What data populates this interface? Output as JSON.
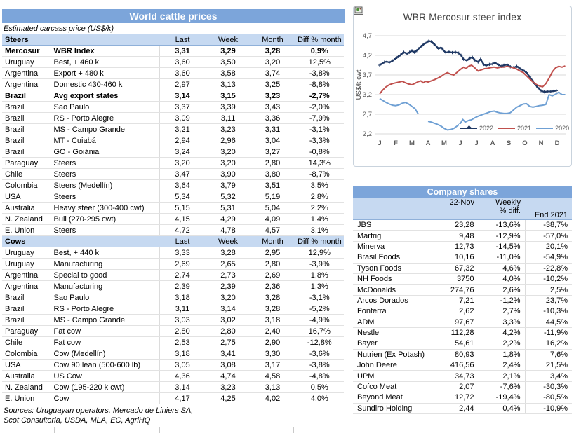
{
  "colors": {
    "header_blue": "#7CA5DA",
    "light_blue": "#C6D9F1",
    "series_2022": "#1F3864",
    "series_2021": "#C0504D",
    "series_2020": "#6FA0D4",
    "grid_gray": "#D9D9D9"
  },
  "left_table": {
    "title": "World cattle prices",
    "subtitle": "Estimated carcass price (US$/k)",
    "columns": [
      "Last",
      "Week",
      "Month",
      "Diff % month"
    ],
    "sections": [
      {
        "name": "Steers",
        "rows": [
          {
            "country": "Mercosur",
            "desc": "WBR Index",
            "last": "3,31",
            "week": "3,29",
            "month": "3,28",
            "diff": "0,9%",
            "bold": true
          },
          {
            "country": "Uruguay",
            "desc": "Best, + 460 k",
            "last": "3,60",
            "week": "3,50",
            "month": "3,20",
            "diff": "12,5%"
          },
          {
            "country": "Argentina",
            "desc": "Export + 480 k",
            "last": "3,60",
            "week": "3,58",
            "month": "3,74",
            "diff": "-3,8%"
          },
          {
            "country": "Argentina",
            "desc": "Domestic 430-460 k",
            "last": "2,97",
            "week": "3,13",
            "month": "3,25",
            "diff": "-8,8%"
          },
          {
            "country": "Brazil",
            "desc": "Avg export states",
            "last": "3,14",
            "week": "3,15",
            "month": "3,23",
            "diff": "-2,7%",
            "bold": true
          },
          {
            "country": "Brazil",
            "desc": "Sao Paulo",
            "last": "3,37",
            "week": "3,39",
            "month": "3,43",
            "diff": "-2,0%"
          },
          {
            "country": "Brazil",
            "desc": "RS - Porto Alegre",
            "last": "3,09",
            "week": "3,11",
            "month": "3,36",
            "diff": "-7,9%"
          },
          {
            "country": "Brazil",
            "desc": "MS - Campo Grande",
            "last": "3,21",
            "week": "3,23",
            "month": "3,31",
            "diff": "-3,1%"
          },
          {
            "country": "Brazil",
            "desc": "MT - Cuiabá",
            "last": "2,94",
            "week": "2,96",
            "month": "3,04",
            "diff": "-3,3%"
          },
          {
            "country": "Brazil",
            "desc": "GO - Goiánia",
            "last": "3,24",
            "week": "3,20",
            "month": "3,27",
            "diff": "-0,8%"
          },
          {
            "country": "Paraguay",
            "desc": "Steers",
            "last": "3,20",
            "week": "3,20",
            "month": "2,80",
            "diff": "14,3%"
          },
          {
            "country": "Chile",
            "desc": "Steers",
            "last": "3,47",
            "week": "3,90",
            "month": "3,80",
            "diff": "-8,7%"
          },
          {
            "country": "Colombia",
            "desc": "Steers (Medellín)",
            "last": "3,64",
            "week": "3,79",
            "month": "3,51",
            "diff": "3,5%"
          },
          {
            "country": "USA",
            "desc": "Steers",
            "last": "5,34",
            "week": "5,32",
            "month": "5,19",
            "diff": "2,8%"
          },
          {
            "country": "Australia",
            "desc": "Heavy steer (300-400 cwt)",
            "last": "5,15",
            "week": "5,31",
            "month": "5,04",
            "diff": "2,2%"
          },
          {
            "country": "N. Zealand",
            "desc": "Bull (270-295 cwt)",
            "last": "4,15",
            "week": "4,29",
            "month": "4,09",
            "diff": "1,4%"
          },
          {
            "country": "E. Union",
            "desc": "Steers",
            "last": "4,72",
            "week": "4,78",
            "month": "4,57",
            "diff": "3,1%"
          }
        ]
      },
      {
        "name": "Cows",
        "rows": [
          {
            "country": "Uruguay",
            "desc": "Best, + 440 k",
            "last": "3,33",
            "week": "3,28",
            "month": "2,95",
            "diff": "12,9%"
          },
          {
            "country": "Uruguay",
            "desc": "Manufacturing",
            "last": "2,69",
            "week": "2,65",
            "month": "2,80",
            "diff": "-3,9%"
          },
          {
            "country": "Argentina",
            "desc": "Special to good",
            "last": "2,74",
            "week": "2,73",
            "month": "2,69",
            "diff": "1,8%"
          },
          {
            "country": "Argentina",
            "desc": "Manufacturing",
            "last": "2,39",
            "week": "2,39",
            "month": "2,36",
            "diff": "1,3%"
          },
          {
            "country": "Brazil",
            "desc": "Sao Paulo",
            "last": "3,18",
            "week": "3,20",
            "month": "3,28",
            "diff": "-3,1%"
          },
          {
            "country": "Brazil",
            "desc": "RS - Porto Alegre",
            "last": "3,11",
            "week": "3,14",
            "month": "3,28",
            "diff": "-5,2%"
          },
          {
            "country": "Brazil",
            "desc": "MS - Campo Grande",
            "last": "3,03",
            "week": "3,02",
            "month": "3,18",
            "diff": "-4,9%"
          },
          {
            "country": "Paraguay",
            "desc": "Fat cow",
            "last": "2,80",
            "week": "2,80",
            "month": "2,40",
            "diff": "16,7%"
          },
          {
            "country": "Chile",
            "desc": "Fat cow",
            "last": "2,53",
            "week": "2,75",
            "month": "2,90",
            "diff": "-12,8%"
          },
          {
            "country": "Colombia",
            "desc": "Cow (Medellín)",
            "last": "3,18",
            "week": "3,41",
            "month": "3,30",
            "diff": "-3,6%"
          },
          {
            "country": "USA",
            "desc": "Cow 90 lean (500-600 lb)",
            "last": "3,05",
            "week": "3,08",
            "month": "3,17",
            "diff": "-3,8%"
          },
          {
            "country": "Australia",
            "desc": "US Cow",
            "last": "4,36",
            "week": "4,74",
            "month": "4,58",
            "diff": "-4,8%"
          },
          {
            "country": "N. Zealand",
            "desc": "Cow (195-220 k cwt)",
            "last": "3,14",
            "week": "3,23",
            "month": "3,13",
            "diff": "0,5%"
          },
          {
            "country": "E. Union",
            "desc": "Cow",
            "last": "4,17",
            "week": "4,25",
            "month": "4,02",
            "diff": "4,0%"
          }
        ]
      }
    ],
    "sources_line1": "Sources: Uruguayan operators, Mercado de Liniers SA,",
    "sources_line2": "Scot Consultoria, USDA, MLA, EC, AgriHQ"
  },
  "chart_data": {
    "type": "line",
    "title": "WBR Mercosur steer index",
    "ylabel": "US$/k cwt",
    "ylim": [
      2.2,
      4.7
    ],
    "yticks": [
      4.7,
      4.2,
      3.7,
      3.2,
      2.7,
      2.2
    ],
    "ytick_labels": [
      "4,7",
      "4,2",
      "3,7",
      "3,2",
      "2,7",
      "2,2"
    ],
    "xticklabels": [
      "J",
      "F",
      "M",
      "A",
      "M",
      "J",
      "J",
      "A",
      "S",
      "O",
      "N",
      "D"
    ],
    "grid": true,
    "legend_position": "inside bottom-right",
    "series": [
      {
        "name": "2022",
        "color": "#1F3864",
        "marker": "plus",
        "x": [
          0.0,
          0.15,
          0.3,
          0.45,
          0.6,
          0.8,
          1.0,
          1.15,
          1.3,
          1.5,
          1.7,
          1.85,
          2.0,
          2.15,
          2.3,
          2.5,
          2.65,
          2.8,
          2.95,
          3.05,
          3.2,
          3.35,
          3.5,
          3.65,
          3.8,
          3.95,
          4.1,
          4.3,
          4.5,
          4.7,
          4.9,
          5.05,
          5.2,
          5.4,
          5.6,
          5.75,
          5.9,
          6.1,
          6.25,
          6.45,
          6.6,
          6.8,
          7.0,
          7.15,
          7.35,
          7.55,
          7.7,
          7.9,
          8.1,
          8.3,
          8.5,
          8.7,
          8.9,
          9.1,
          9.3,
          9.45,
          9.6,
          9.8,
          10.0,
          10.2,
          10.4,
          10.6,
          10.8,
          10.95
        ],
        "values": [
          3.95,
          3.99,
          4.03,
          4.04,
          4.02,
          4.06,
          4.12,
          4.17,
          4.21,
          4.28,
          4.24,
          4.28,
          4.32,
          4.28,
          4.32,
          4.4,
          4.46,
          4.5,
          4.54,
          4.57,
          4.55,
          4.5,
          4.44,
          4.37,
          4.4,
          4.33,
          4.27,
          4.29,
          4.27,
          4.28,
          4.26,
          4.2,
          4.1,
          4.07,
          4.13,
          4.15,
          4.08,
          4.03,
          4.1,
          3.97,
          3.94,
          3.97,
          3.98,
          4.01,
          3.96,
          3.92,
          3.95,
          3.96,
          3.91,
          3.89,
          3.92,
          3.86,
          3.82,
          3.76,
          3.65,
          3.56,
          3.48,
          3.38,
          3.3,
          3.27,
          3.28,
          3.28,
          3.29,
          3.3
        ]
      },
      {
        "name": "2021",
        "color": "#C0504D",
        "x": [
          0.0,
          0.2,
          0.4,
          0.6,
          0.8,
          1.0,
          1.2,
          1.4,
          1.6,
          1.8,
          2.0,
          2.2,
          2.4,
          2.55,
          2.7,
          2.85,
          3.0,
          3.2,
          3.4,
          3.6,
          3.8,
          4.0,
          4.2,
          4.4,
          4.6,
          4.8,
          5.0,
          5.2,
          5.35,
          5.5,
          5.7,
          5.9,
          6.1,
          6.3,
          6.5,
          6.7,
          6.9,
          7.1,
          7.3,
          7.5,
          7.7,
          7.9,
          8.1,
          8.3,
          8.5,
          8.7,
          8.9,
          9.1,
          9.3,
          9.5,
          9.7,
          9.9,
          10.1,
          10.3,
          10.5,
          10.7,
          10.9,
          11.1,
          11.3,
          11.5
        ],
        "values": [
          3.22,
          3.32,
          3.4,
          3.45,
          3.48,
          3.5,
          3.52,
          3.54,
          3.5,
          3.47,
          3.45,
          3.49,
          3.53,
          3.55,
          3.5,
          3.54,
          3.52,
          3.55,
          3.58,
          3.62,
          3.66,
          3.72,
          3.76,
          3.72,
          3.7,
          3.77,
          3.84,
          3.9,
          3.86,
          3.92,
          3.95,
          3.88,
          3.8,
          3.83,
          3.86,
          3.87,
          3.89,
          3.9,
          3.88,
          3.9,
          3.9,
          3.92,
          3.9,
          3.88,
          3.85,
          3.8,
          3.76,
          3.68,
          3.6,
          3.52,
          3.46,
          3.42,
          3.4,
          3.48,
          3.62,
          3.78,
          3.88,
          3.92,
          3.9,
          3.93
        ]
      },
      {
        "name": "2020",
        "color": "#6FA0D4",
        "x": [
          0.0,
          0.2,
          0.4,
          0.6,
          0.8,
          1.0,
          1.2,
          1.4,
          1.6,
          1.8,
          2.0,
          2.2,
          2.4,
          2.7,
          3.0,
          3.2,
          3.4,
          3.6,
          3.8,
          4.0,
          4.2,
          4.4,
          4.6,
          4.8,
          5.0,
          5.15,
          5.3,
          5.5,
          5.7,
          5.9,
          6.1,
          6.3,
          6.5,
          6.7,
          6.9,
          7.1,
          7.3,
          7.5,
          7.7,
          7.9,
          8.1,
          8.3,
          8.5,
          8.7,
          8.9,
          9.1,
          9.3,
          9.5,
          9.7,
          9.9,
          10.1,
          10.3,
          10.5,
          10.7,
          10.9,
          11.1,
          11.3,
          11.5
        ],
        "values": [
          3.1,
          3.05,
          3.0,
          2.96,
          2.93,
          2.92,
          2.94,
          2.98,
          3.0,
          2.96,
          2.9,
          2.84,
          2.7,
          null,
          2.52,
          2.5,
          2.47,
          2.44,
          2.4,
          2.34,
          2.3,
          2.31,
          2.34,
          2.4,
          2.46,
          2.57,
          2.5,
          2.54,
          2.56,
          2.61,
          2.65,
          2.68,
          2.71,
          2.74,
          2.77,
          2.78,
          2.75,
          2.73,
          2.72,
          2.72,
          2.74,
          2.81,
          2.88,
          2.92,
          2.96,
          2.97,
          2.9,
          2.88,
          2.9,
          2.92,
          2.93,
          2.95,
          3.2,
          3.17,
          3.21,
          3.26,
          3.2,
          3.2
        ]
      }
    ]
  },
  "company_table": {
    "title": "Company shares",
    "col_date": "22-Nov",
    "col_weekly_1": "Weekly",
    "col_weekly_2": "% diff.",
    "col_end": "End 2021",
    "rows": [
      {
        "name": "JBS",
        "price": "23,28",
        "weekly": "-13,6%",
        "end": "-38,7%"
      },
      {
        "name": "Marfrig",
        "price": "9,48",
        "weekly": "-12,9%",
        "end": "-57,0%"
      },
      {
        "name": "Minerva",
        "price": "12,73",
        "weekly": "-14,5%",
        "end": "20,1%"
      },
      {
        "name": "Brasil Foods",
        "price": "10,16",
        "weekly": "-11,0%",
        "end": "-54,9%"
      },
      {
        "name": "Tyson Foods",
        "price": "67,32",
        "weekly": "4,6%",
        "end": "-22,8%"
      },
      {
        "name": "NH Foods",
        "price": "3750",
        "weekly": "4,0%",
        "end": "-10,2%"
      },
      {
        "name": "McDonalds",
        "price": "274,76",
        "weekly": "2,6%",
        "end": "2,5%"
      },
      {
        "name": "Arcos Dorados",
        "price": "7,21",
        "weekly": "-1,2%",
        "end": "23,7%"
      },
      {
        "name": "Fonterra",
        "price": "2,62",
        "weekly": "2,7%",
        "end": "-10,3%"
      },
      {
        "name": "ADM",
        "price": "97,67",
        "weekly": "3,3%",
        "end": "44,5%"
      },
      {
        "name": "Nestle",
        "price": "112,28",
        "weekly": "4,2%",
        "end": "-11,9%"
      },
      {
        "name": "Bayer",
        "price": "54,61",
        "weekly": "2,2%",
        "end": "16,2%"
      },
      {
        "name": "Nutrien (Ex Potash)",
        "price": "80,93",
        "weekly": "1,8%",
        "end": "7,6%"
      },
      {
        "name": "John Deere",
        "price": "416,56",
        "weekly": "2,4%",
        "end": "21,5%"
      },
      {
        "name": "UPM",
        "price": "34,73",
        "weekly": "2,1%",
        "end": "3,4%"
      },
      {
        "name": "Cofco Meat",
        "price": "2,07",
        "weekly": "-7,6%",
        "end": "-30,3%"
      },
      {
        "name": "Beyond Meat",
        "price": "12,72",
        "weekly": "-19,4%",
        "end": "-80,5%"
      },
      {
        "name": "Sundiro Holding",
        "price": "2,44",
        "weekly": "0,4%",
        "end": "-10,9%"
      }
    ]
  }
}
